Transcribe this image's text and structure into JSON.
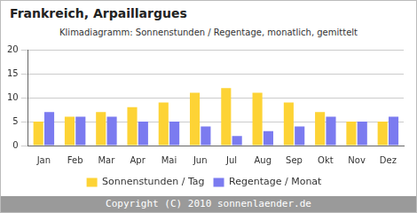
{
  "chart_data": {
    "type": "bar",
    "title": "Frankreich, Arpaillargues",
    "subtitle": "Klimadiagramm: Sonnenstunden / Regentage, monatlich, gemittelt",
    "footer": "Copyright (C) 2010 sonnenlaender.de",
    "categories": [
      "Jan",
      "Feb",
      "Mar",
      "Apr",
      "Mai",
      "Jun",
      "Jul",
      "Aug",
      "Sep",
      "Okt",
      "Nov",
      "Dez"
    ],
    "series": [
      {
        "name": "Sonnenstunden / Tag",
        "color": "#fdd335",
        "values": [
          5,
          6,
          7,
          8,
          9,
          11,
          12,
          11,
          9,
          7,
          5,
          5
        ]
      },
      {
        "name": "Regentage / Monat",
        "color": "#7b7bf0",
        "values": [
          7,
          6,
          6,
          5,
          5,
          4,
          2,
          3,
          4,
          6,
          5,
          6
        ]
      }
    ],
    "ylim": [
      0,
      20
    ],
    "yticks": [
      0,
      5,
      10,
      15,
      20
    ],
    "grid": true,
    "legend": "bottom"
  }
}
